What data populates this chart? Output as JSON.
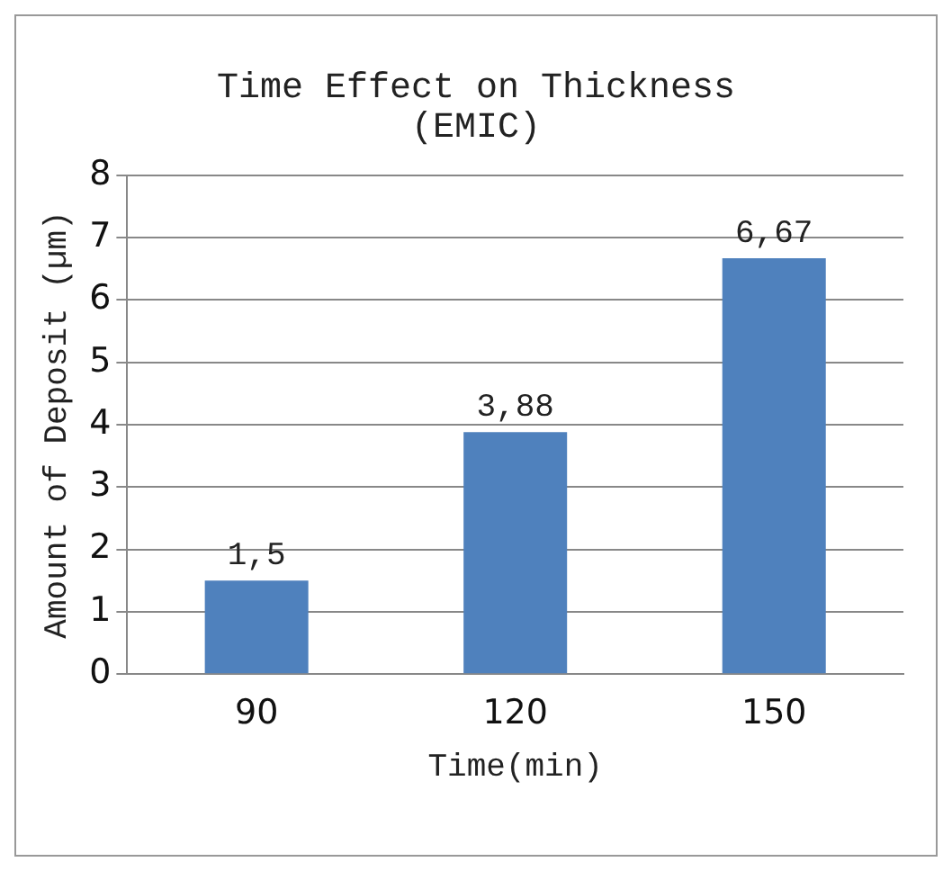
{
  "chart_data": {
    "type": "bar",
    "title": "Time Effect on Thickness (EMIC)",
    "xlabel": "Time(min)",
    "ylabel": "Amount of Deposit (µm)",
    "categories": [
      "90",
      "120",
      "150"
    ],
    "values": [
      1.5,
      3.88,
      6.67
    ],
    "value_labels": [
      "1,5",
      "3,88",
      "6,67"
    ],
    "color": "#4f81bd",
    "ylim": [
      0,
      8
    ],
    "yticks": [
      0,
      1,
      2,
      3,
      4,
      5,
      6,
      7,
      8
    ],
    "grid": "y",
    "legend": false
  }
}
